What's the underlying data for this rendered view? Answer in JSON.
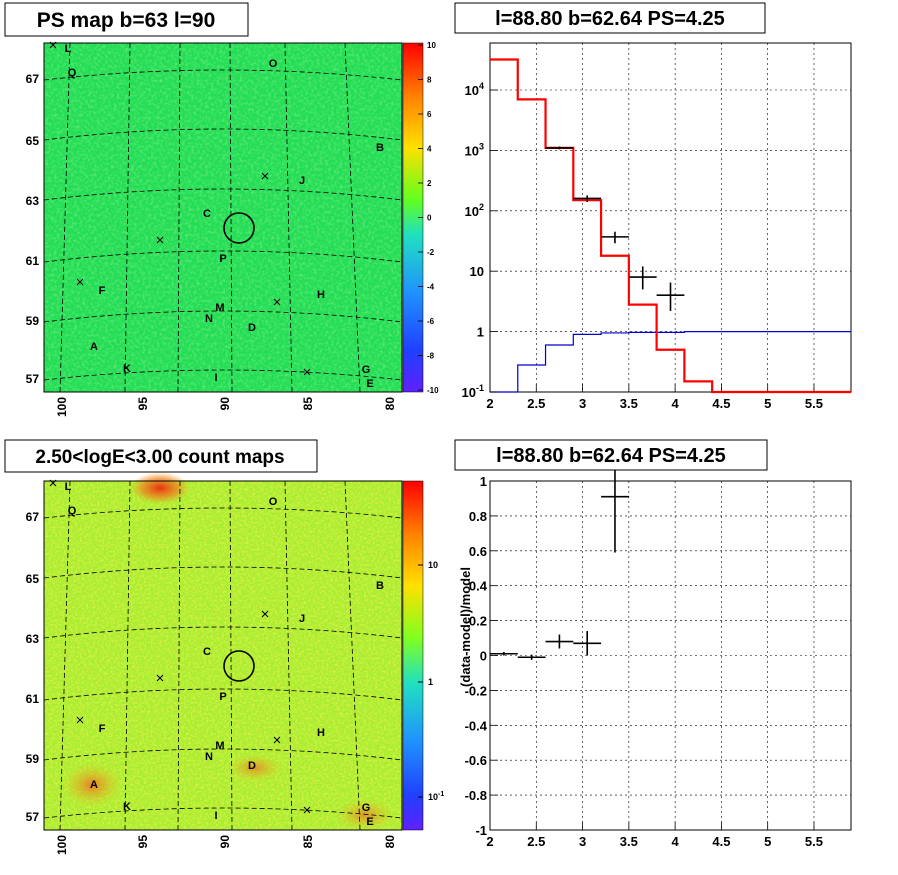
{
  "panels": {
    "ps_map": {
      "title": "PS map b=63 l=90",
      "colorbar": {
        "ticks": [
          "10",
          "8",
          "6",
          "4",
          "2",
          "0",
          "-2",
          "-4",
          "-6",
          "-8",
          "-10"
        ],
        "range": [
          -10,
          10
        ]
      }
    },
    "count_map": {
      "title": "2.50<logE<3.00 count maps",
      "colorbar": {
        "ticks": [
          "10",
          "1",
          "10-1"
        ],
        "scale": "log"
      }
    },
    "sky_axes": {
      "lat_ticks": [
        "67",
        "65",
        "63",
        "61",
        "59",
        "57"
      ],
      "lon_ticks": [
        "100",
        "95",
        "90",
        "85",
        "80"
      ]
    },
    "sources": [
      "L",
      "Q",
      "O",
      "B",
      "J",
      "C",
      "P",
      "F",
      "H",
      "M",
      "N",
      "D",
      "A",
      "K",
      "I",
      "G",
      "E"
    ],
    "spectrum_title": "l=88.80 b=62.64 PS=4.25",
    "residual_title": "l=88.80 b=62.64 PS=4.25"
  },
  "colors": {
    "model": "#ff0000",
    "background": "#0000cc",
    "data": "#000000",
    "map_base": "#22dd55"
  },
  "chart_data": [
    {
      "type": "line",
      "title": "l=88.80 b=62.64 PS=4.25",
      "xlabel": "",
      "ylabel": "",
      "xlim": [
        2,
        5.9
      ],
      "ylim": [
        0.1,
        60000
      ],
      "yscale": "log",
      "grid": true,
      "x_ticks": [
        "2",
        "2.5",
        "3",
        "3.5",
        "4",
        "4.5",
        "5",
        "5.5"
      ],
      "y_ticks": [
        "10^-1",
        "1",
        "10",
        "10^2",
        "10^3",
        "10^4"
      ],
      "series": [
        {
          "kind": "step",
          "edges": [
            2.0,
            2.3,
            2.6,
            2.9,
            3.2,
            3.5,
            3.8,
            4.1,
            4.4,
            5.9
          ],
          "values": [
            32000,
            7000,
            1100,
            150,
            18,
            2.8,
            0.5,
            0.15,
            0.08
          ]
        },
        {
          "kind": "step",
          "edges": [
            2.0,
            2.3,
            2.6,
            2.9,
            3.2,
            3.5,
            4.1,
            5.9
          ],
          "values": [
            0.1,
            0.28,
            0.6,
            0.9,
            0.95,
            0.97,
            1.0
          ]
        },
        {
          "kind": "points",
          "x": [
            2.75,
            3.05,
            3.35,
            3.65,
            3.95
          ],
          "y": [
            1100,
            160,
            37,
            8,
            4
          ],
          "xerr": [
            0.15,
            0.15,
            0.15,
            0.15,
            0.15
          ],
          "yerr_lo": [
            60,
            20,
            8,
            3,
            1.8
          ],
          "yerr_hi": [
            60,
            20,
            8,
            4,
            2.5
          ]
        }
      ]
    },
    {
      "type": "scatter",
      "title": "l=88.80 b=62.64 PS=4.25",
      "xlabel": "",
      "ylabel": "(data-model)/model",
      "xlim": [
        2,
        5.9
      ],
      "ylim": [
        -1,
        1
      ],
      "grid": true,
      "x_ticks": [
        "2",
        "2.5",
        "3",
        "3.5",
        "4",
        "4.5",
        "5",
        "5.5"
      ],
      "y_ticks": [
        "-1",
        "-0.8",
        "-0.6",
        "-0.4",
        "-0.2",
        "0",
        "0.2",
        "0.4",
        "0.6",
        "0.8",
        "1"
      ],
      "series": [
        {
          "x": [
            2.15,
            2.45,
            2.75,
            3.05,
            3.35
          ],
          "y": [
            0.01,
            -0.01,
            0.08,
            0.07,
            0.91
          ],
          "xerr": [
            0.15,
            0.15,
            0.15,
            0.15,
            0.15
          ],
          "yerr": [
            0.01,
            0.015,
            0.04,
            0.07,
            0.32
          ]
        }
      ]
    }
  ]
}
